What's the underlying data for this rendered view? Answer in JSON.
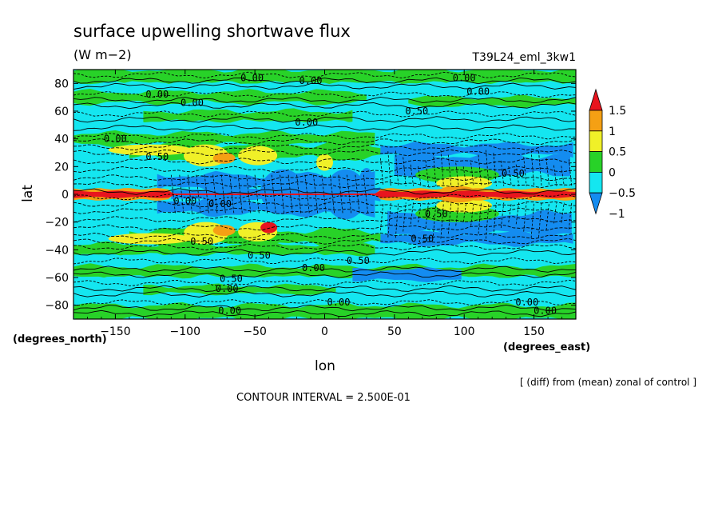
{
  "chart_data": {
    "type": "heatmap",
    "title": "surface upwelling shortwave flux",
    "units": "(W m−2)",
    "run_label": "T39L24_eml_3kw1",
    "xlabel": "lon",
    "ylabel": "lat",
    "x_units": "(degrees_east)",
    "y_units": "(degrees_north)",
    "xlim": [
      -180,
      180
    ],
    "ylim": [
      -90,
      90
    ],
    "x_ticks": [
      -150,
      -100,
      -50,
      0,
      50,
      100,
      150
    ],
    "y_ticks": [
      80,
      60,
      40,
      20,
      0,
      -20,
      -40,
      -60,
      -80
    ],
    "x_tick_labels": [
      "−150",
      "−100",
      "−50",
      "0",
      "50",
      "100",
      "150"
    ],
    "y_tick_labels": [
      "80",
      "60",
      "40",
      "20",
      "0",
      "−20",
      "−40",
      "−60",
      "−80"
    ],
    "note": "[ (diff) from (mean) zonal of control ]",
    "contour_interval": "CONTOUR INTERVAL = 2.500E-01",
    "colorbar": {
      "levels": [
        1.5,
        1,
        0.5,
        0,
        -0.5,
        -1
      ],
      "labels": [
        "1.5",
        "1",
        "0.5",
        "0",
        "−0.5",
        "−1"
      ],
      "colors": [
        "#e8141e",
        "#f5a014",
        "#f0f028",
        "#28d228",
        "#14e6f0",
        "#148cf0"
      ]
    },
    "contour_labels": [
      {
        "text": "0.00",
        "lon": -52,
        "lat": 84
      },
      {
        "text": "0.00",
        "lon": -10,
        "lat": 82
      },
      {
        "text": "0.00",
        "lon": 100,
        "lat": 84
      },
      {
        "text": "0.00",
        "lon": 110,
        "lat": 74
      },
      {
        "text": "0.00",
        "lon": -120,
        "lat": 72
      },
      {
        "text": "0.00",
        "lon": -95,
        "lat": 66
      },
      {
        "text": "0.00",
        "lon": -13,
        "lat": 52
      },
      {
        "text": "0.50",
        "lon": 66,
        "lat": 60
      },
      {
        "text": "0.00",
        "lon": -150,
        "lat": 40
      },
      {
        "text": "0.50",
        "lon": -120,
        "lat": 27
      },
      {
        "text": "0.00",
        "lon": -100,
        "lat": -5
      },
      {
        "text": "0.00",
        "lon": -75,
        "lat": -7
      },
      {
        "text": "0.50",
        "lon": -88,
        "lat": -34
      },
      {
        "text": "0.50",
        "lon": -47,
        "lat": -44
      },
      {
        "text": "0.00",
        "lon": -8,
        "lat": -53
      },
      {
        "text": "0.50",
        "lon": 24,
        "lat": -48
      },
      {
        "text": "0.50",
        "lon": -67,
        "lat": -61
      },
      {
        "text": "0.00",
        "lon": -70,
        "lat": -68
      },
      {
        "text": "0.00",
        "lon": -68,
        "lat": -84
      },
      {
        "text": "0.00",
        "lon": 10,
        "lat": -78
      },
      {
        "text": "0.00",
        "lon": 145,
        "lat": -78
      },
      {
        "text": "0.00",
        "lon": 158,
        "lat": -84
      },
      {
        "text": "0.50",
        "lon": 80,
        "lat": -14
      },
      {
        "text": "0.50",
        "lon": 70,
        "lat": -32
      },
      {
        "text": "0.50",
        "lon": 135,
        "lat": 15
      }
    ]
  }
}
